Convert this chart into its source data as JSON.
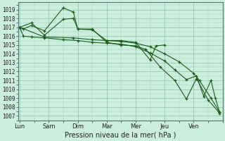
{
  "xlabel": "Pression niveau de la mer( hPa )",
  "background_color": "#cceedd",
  "grid_color": "#88bbaa",
  "line_color": "#1a5c1a",
  "ylim": [
    1006.5,
    1019.8
  ],
  "yticks": [
    1007,
    1008,
    1009,
    1010,
    1011,
    1012,
    1013,
    1014,
    1015,
    1016,
    1017,
    1018,
    1019
  ],
  "xtick_labels": [
    "Lun",
    "Sam",
    "Dim",
    "Mar",
    "Mer",
    "Jeu",
    "Ven"
  ],
  "xtick_positions": [
    0,
    1,
    2,
    3,
    4,
    5,
    6
  ],
  "xlim": [
    -0.05,
    7.0
  ],
  "series": [
    [
      1017.0,
      1016.8,
      1017.2,
      1016.6,
      1019.2,
      1018.7,
      1016.8,
      1016.8,
      1015.3,
      1015.0,
      1014.9,
      1014.5,
      1012.5,
      1011.0,
      1008.9,
      1011.2,
      1008.8,
      1007.3
    ],
    [
      1017.0,
      1017.5,
      1016.1,
      1017.9,
      1018.0,
      1016.8,
      1016.7,
      1015.5,
      1015.5,
      1015.3,
      1013.3,
      1014.9,
      1015.0
    ],
    [
      1017.0,
      1016.0,
      1015.9,
      1015.8,
      1015.6,
      1015.5,
      1015.3,
      1015.2,
      1015.1,
      1014.8,
      1014.1,
      1013.2,
      1012.2,
      1011.1,
      1011.5,
      1009.2,
      1011.0,
      1009.0,
      1007.4
    ],
    [
      1017.0,
      1015.9,
      1015.8,
      1015.6,
      1015.5,
      1015.4,
      1015.2,
      1014.8,
      1014.0,
      1013.1,
      1011.8,
      1011.0,
      1009.0,
      1007.4
    ]
  ],
  "series_x": [
    [
      0.0,
      0.12,
      0.4,
      0.85,
      1.5,
      1.85,
      2.0,
      2.5,
      3.0,
      3.5,
      4.0,
      4.35,
      4.85,
      5.35,
      5.75,
      6.1,
      6.5,
      6.9
    ],
    [
      0.0,
      0.4,
      0.85,
      1.5,
      1.85,
      2.0,
      2.5,
      3.0,
      3.5,
      4.0,
      4.5,
      4.7,
      5.0
    ],
    [
      0.0,
      0.12,
      0.4,
      0.85,
      1.5,
      2.0,
      2.5,
      3.0,
      3.5,
      4.0,
      4.5,
      5.0,
      5.35,
      5.75,
      6.1,
      6.35,
      6.6,
      6.75,
      6.9
    ],
    [
      0.0,
      0.85,
      1.85,
      2.5,
      3.0,
      3.5,
      4.0,
      4.5,
      5.0,
      5.5,
      6.0,
      6.2,
      6.6,
      6.9
    ]
  ]
}
